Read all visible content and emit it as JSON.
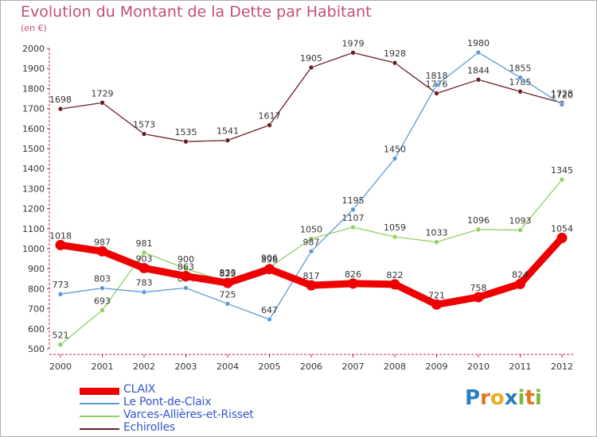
{
  "title": "Evolution du Montant de la Dette par Habitant",
  "subtitle": "(en €)",
  "logo": {
    "text": "Proxiti",
    "letters": [
      {
        "ch": "P",
        "color": "#2b7dbf"
      },
      {
        "ch": "r",
        "color": "#e07820"
      },
      {
        "ch": "o",
        "color": "#e8b020"
      },
      {
        "ch": "x",
        "color": "#2b7dbf"
      },
      {
        "ch": "i",
        "color": "#7cba3a"
      },
      {
        "ch": "t",
        "color": "#e07820"
      },
      {
        "ch": "i",
        "color": "#7cba3a"
      }
    ]
  },
  "chart_data": {
    "type": "line",
    "title": "Evolution du Montant de la Dette par Habitant",
    "subtitle": "(en €)",
    "xlabel": "",
    "ylabel": "",
    "ylim": [
      500,
      2000
    ],
    "yticks": [
      500,
      600,
      700,
      800,
      900,
      1000,
      1100,
      1200,
      1300,
      1400,
      1500,
      1600,
      1700,
      1800,
      1900,
      2000
    ],
    "grid": false,
    "legend_position": "bottom-left",
    "x": [
      "2000",
      "2001",
      "2002",
      "2003",
      "2004",
      "2005",
      "2006",
      "2007",
      "2008",
      "2009",
      "2010",
      "2011",
      "2012"
    ],
    "series": [
      {
        "name": "Echirolles",
        "color": "#6b1e26",
        "values": [
          1698,
          1729,
          1573,
          1535,
          1541,
          1617,
          1905,
          1979,
          1928,
          1776,
          1844,
          1785,
          1728
        ]
      },
      {
        "name": "Varces-Allières-et-Risset",
        "color": "#90d060",
        "values": [
          521,
          693,
          981,
          900,
          833,
          906,
          1050,
          1107,
          1059,
          1033,
          1096,
          1093,
          1345
        ]
      },
      {
        "name": "Le Pont-de-Claix",
        "color": "#5b9bd5",
        "values": [
          773,
          803,
          783,
          804,
          725,
          647,
          987,
          1195,
          1450,
          1818,
          1980,
          1855,
          1720
        ]
      },
      {
        "name": "CLAIX",
        "color": "#ee0000",
        "values": [
          1018,
          987,
          903,
          863,
          829,
          898,
          817,
          826,
          822,
          721,
          758,
          824,
          1054
        ]
      }
    ],
    "legend_order": [
      "CLAIX",
      "Le Pont-de-Claix",
      "Varces-Allières-et-Risset",
      "Echirolles"
    ]
  }
}
